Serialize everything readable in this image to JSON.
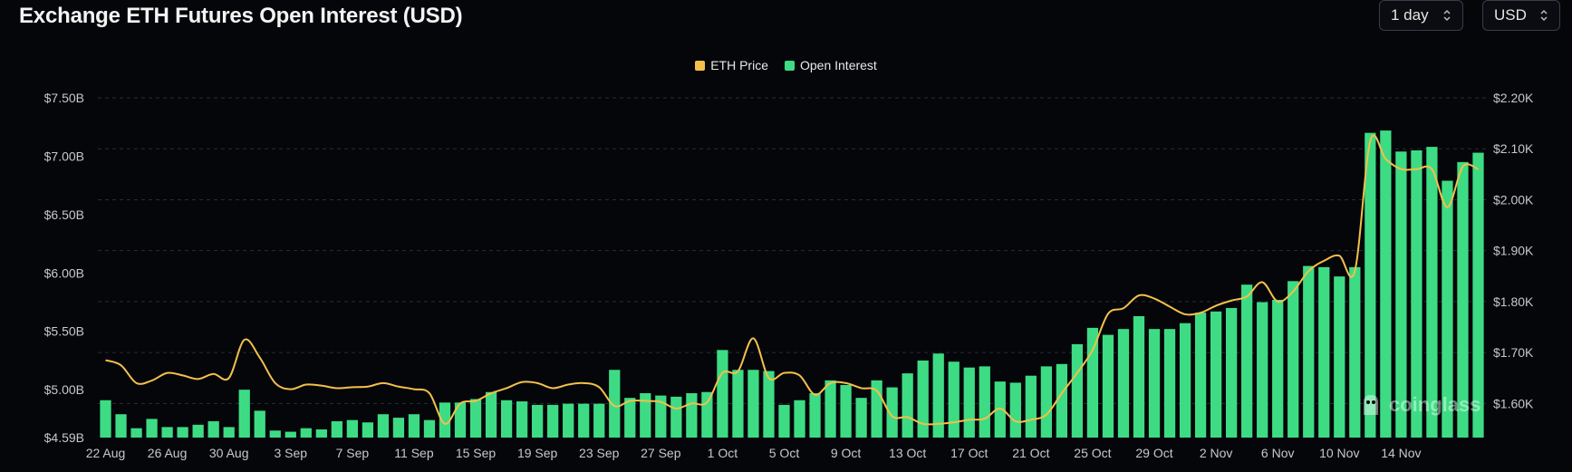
{
  "header": {
    "title": "Exchange ETH Futures Open Interest (USD)"
  },
  "controls": {
    "interval": {
      "value": "1 day"
    },
    "unit": {
      "value": "USD"
    }
  },
  "legend": [
    {
      "label": "ETH Price",
      "color": "#f3c04b"
    },
    {
      "label": "Open Interest",
      "color": "#3ddc84"
    }
  ],
  "watermark": {
    "text": "coinglass"
  },
  "chart_data": {
    "type": "bar",
    "title": "Exchange ETH Futures Open Interest (USD)",
    "x_tick_labels": [
      "22 Aug",
      "26 Aug",
      "30 Aug",
      "3 Sep",
      "7 Sep",
      "11 Sep",
      "15 Sep",
      "19 Sep",
      "23 Sep",
      "27 Sep",
      "1 Oct",
      "5 Oct",
      "9 Oct",
      "13 Oct",
      "17 Oct",
      "21 Oct",
      "25 Oct",
      "29 Oct",
      "2 Nov",
      "6 Nov",
      "10 Nov",
      "14 Nov"
    ],
    "x_tick_every": 4,
    "y_left": {
      "ticks": [
        "$4.59B",
        "$5.00B",
        "$5.50B",
        "$6.00B",
        "$6.50B",
        "$7.00B",
        "$7.50B"
      ],
      "tick_values": [
        4.59,
        5.0,
        5.5,
        6.0,
        6.5,
        7.0,
        7.5
      ],
      "range": [
        4.59,
        7.5
      ]
    },
    "y_right": {
      "ticks": [
        "$1.60K",
        "$1.70K",
        "$1.80K",
        "$1.90K",
        "$2.00K",
        "$2.10K",
        "$2.20K"
      ],
      "tick_values": [
        1.6,
        1.7,
        1.8,
        1.9,
        2.0,
        2.1,
        2.2
      ],
      "range": [
        1.533,
        2.2
      ]
    },
    "grid": true,
    "legend_position": "top-center",
    "series": [
      {
        "name": "Open Interest",
        "kind": "bar",
        "axis": "left",
        "color": "#3ddc84",
        "values": [
          4.91,
          4.79,
          4.67,
          4.75,
          4.68,
          4.68,
          4.7,
          4.73,
          4.68,
          5.0,
          4.82,
          4.65,
          4.64,
          4.67,
          4.66,
          4.73,
          4.74,
          4.72,
          4.79,
          4.76,
          4.79,
          4.74,
          4.89,
          4.89,
          4.92,
          4.98,
          4.91,
          4.9,
          4.87,
          4.87,
          4.88,
          4.88,
          4.88,
          5.17,
          4.93,
          4.97,
          4.95,
          4.94,
          4.97,
          4.98,
          5.34,
          5.17,
          5.17,
          5.16,
          4.87,
          4.91,
          4.97,
          5.08,
          5.04,
          4.93,
          5.08,
          5.02,
          5.14,
          5.25,
          5.31,
          5.24,
          5.19,
          5.2,
          5.07,
          5.06,
          5.12,
          5.2,
          5.22,
          5.39,
          5.53,
          5.47,
          5.52,
          5.63,
          5.52,
          5.52,
          5.57,
          5.66,
          5.67,
          5.7,
          5.9,
          5.75,
          5.77,
          5.93,
          6.06,
          6.05,
          5.97,
          6.05,
          7.2,
          7.22,
          7.04,
          7.05,
          7.08,
          6.79,
          6.95,
          7.03
        ]
      },
      {
        "name": "ETH Price",
        "kind": "line",
        "axis": "right",
        "color": "#f3c04b",
        "values": [
          1.685,
          1.675,
          1.64,
          1.645,
          1.66,
          1.655,
          1.648,
          1.658,
          1.65,
          1.725,
          1.69,
          1.64,
          1.628,
          1.637,
          1.635,
          1.63,
          1.632,
          1.633,
          1.64,
          1.633,
          1.628,
          1.62,
          1.56,
          1.6,
          1.605,
          1.62,
          1.63,
          1.642,
          1.64,
          1.63,
          1.637,
          1.64,
          1.632,
          1.595,
          1.605,
          1.605,
          1.603,
          1.59,
          1.6,
          1.602,
          1.66,
          1.663,
          1.728,
          1.65,
          1.66,
          1.655,
          1.617,
          1.64,
          1.64,
          1.63,
          1.625,
          1.575,
          1.573,
          1.56,
          1.56,
          1.563,
          1.568,
          1.57,
          1.59,
          1.565,
          1.568,
          1.578,
          1.62,
          1.66,
          1.705,
          1.776,
          1.787,
          1.812,
          1.806,
          1.79,
          1.775,
          1.778,
          1.792,
          1.802,
          1.81,
          1.838,
          1.8,
          1.82,
          1.86,
          1.88,
          1.89,
          1.86,
          2.115,
          2.08,
          2.06,
          2.06,
          2.06,
          1.985,
          2.065,
          2.06
        ]
      }
    ]
  }
}
